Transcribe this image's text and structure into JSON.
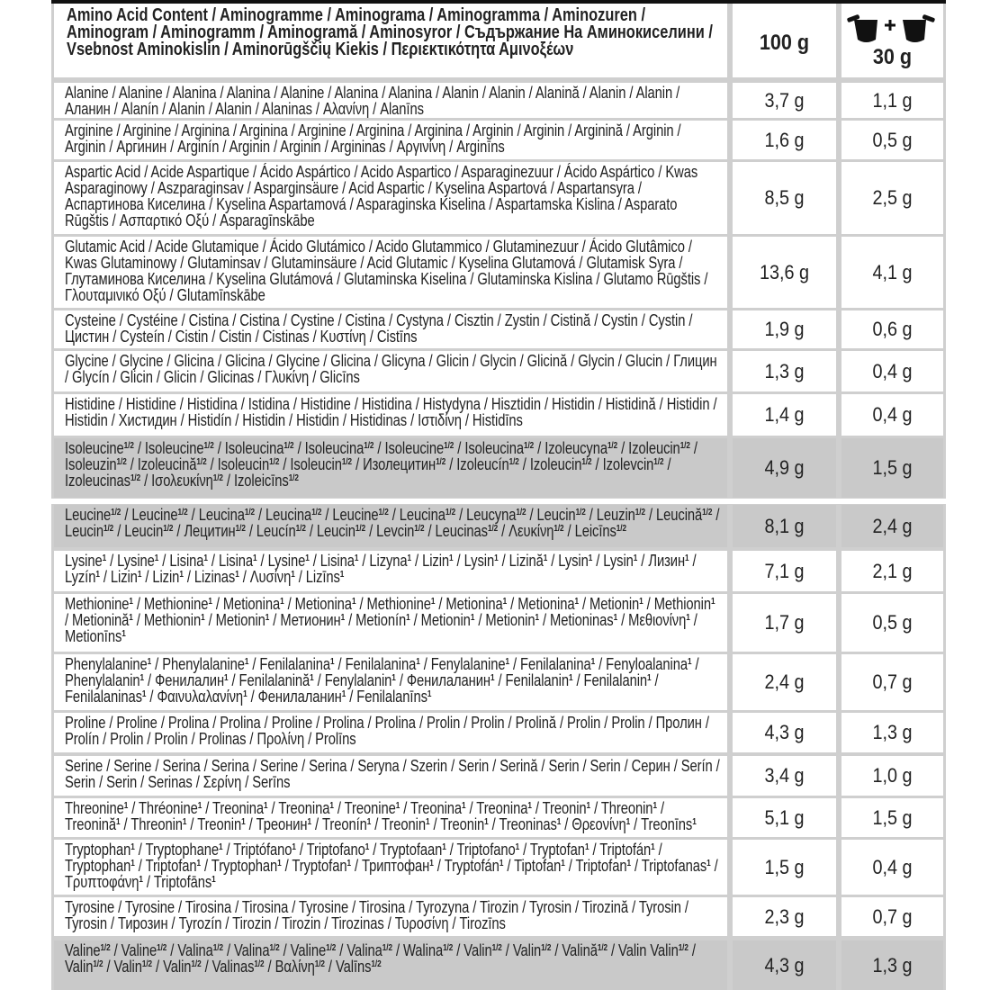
{
  "header": {
    "title": "Amino Acid Content / Aminogramme / Aminograma / Aminogramma / Aminozuren / Aminogram / Aminogramm / Aminogramă / Aminosyror / Съдържание На Аминокиселини / Vsebnost Aminokislin / Aminorūgščių Kiekis / Περιεκτικότητα Αμινοξέων",
    "col_100": "100 g",
    "col_serving": "30 g"
  },
  "table": {
    "rows": [
      {
        "name": [
          "Alanine / Alanine / Alanina / Alanina / Alanine / Alanina / Alanina / Alanin / Alanin / Alanină / Alanin / Alanin / Аланин / Alanín / Alanin / Alanin / Alaninas / Αλανίνη / Alanīns"
        ],
        "per100": "3,7 g",
        "perServing": "1,1 g"
      },
      {
        "name": [
          "Arginine / Arginine / Arginina / Arginina / Arginine / Arginina / Arginina / Arginin / Arginin / Arginină / Arginin / Arginin / Аргинин / Arginín / Arginin / Arginin / Argininas / Αργινίνη / Arginīns"
        ],
        "per100": "1,6 g",
        "perServing": "0,5 g"
      },
      {
        "name": [
          "Aspartic Acid / Acide Aspartique / Ácido Aspártico / Acido Aspartico / Asparaginezuur / Ácido Aspártico / Kwas Asparaginowy / Aszparaginsav / Asparginsäure / Acid Aspartic / Kyselina Aspartová / Aspartansyra / Аспартинова Киселина / Kyselina Aspartamová / Asparaginska Kiselina / Aspartamska Kislina / Asparato Rūgštis / Ασπαρτικό Οξύ / Asparagīnskābe"
        ],
        "per100": "8,5 g",
        "perServing": "2,5 g"
      },
      {
        "name": [
          "Glutamic Acid / Acide Glutamique / Ácido Glutámico / Acido Glutammico / Glutaminezuur / Ácido Glutâmico / Kwas Glutaminowy / Glutaminsav / Glutaminsäure / Acid Glutamic / Kyselina Glutamová / Glutamisk Syra / Глутаминова Киселина / Kyselina Glutámová / Glutaminska Kiselina / Glutaminska Kislina / Glutamo Rūgštis / Γλουταμινικό Οξύ / Glutamīnskābe"
        ],
        "per100": "13,6 g",
        "perServing": "4,1 g"
      },
      {
        "name": [
          "Cysteine / Cystéine / Cistina / Cistina / Cystine / Cistina / Cystyna / Cisztin / Zystin / Cistină / Cystin / Cystin / Цистин / Cysteín / Cistin / Cistin / Cistinas / Κυστίνη / Cistīns"
        ],
        "per100": "1,9 g",
        "perServing": "0,6 g"
      },
      {
        "name": [
          "Glycine / Glycine / Glicina / Glicina / Glycine / Glicina / Glicyna / Glicin / Glycin / Glicină / Glycin / Glucin / Глицин / Glycín / Glicin / Glicin / Glicinas / Γλυκίνη / Glicīns"
        ],
        "per100": "1,3 g",
        "perServing": "0,4 g"
      },
      {
        "name": [
          "Histidine / Histidine / Histidina / Istidina / Histidine / Histidina / Histydyna / Hisztidin / Histidin / Histidină / Histidin / Histidin / Хистидин / Histidín / Histidin / Histidin / Histidinas / Ιστιδίνη / Histidīns"
        ],
        "per100": "1,4 g",
        "perServing": "0,4 g"
      },
      {
        "name": [
          "Isoleucine",
          "1/2",
          " / Isoleucine",
          "1/2",
          " / Isoleucina",
          "1/2",
          " / Isoleucina",
          "1/2",
          " / Isoleucine",
          "1/2",
          " / Isoleucina",
          "1/2",
          " / Izoleucyna",
          "1/2",
          " / Izoleucin",
          "1/2",
          " / Isoleuzin",
          "1/2",
          " / Izoleucină",
          "1/2",
          " / Isoleucin",
          "1/2",
          " / Isoleucin",
          "1/2",
          " / Изолецитин",
          "1/2",
          " / Izoleucín",
          "1/2",
          " / Izoleucin",
          "1/2",
          " / Izolevcin",
          "1/2",
          " / Izoleucinas",
          "1/2",
          " / Ισολευκίνη",
          "1/2",
          " / Izoleicīns",
          "1/2"
        ],
        "per100": "4,9 g",
        "perServing": "1,5 g"
      },
      {
        "name": [
          "Leucine",
          "1/2",
          " / Leucine",
          "1/2",
          " / Leucina",
          "1/2",
          " / Leucina",
          "1/2",
          " / Leucine",
          "1/2",
          " / Leucina",
          "1/2",
          " / Leucyna",
          "1/2",
          " / Leucin",
          "1/2",
          " / Leuzin",
          "1/2",
          " / Leucină",
          "1/2",
          " / Leucin",
          "1/2",
          " / Leucin",
          "1/2",
          " / Лецитин",
          "1/2",
          " / Leucín",
          "1/2",
          " / Leucin",
          "1/2",
          " / Levcin",
          "1/2",
          " / Leucinas",
          "1/2",
          " / Λευκίνη",
          "1/2",
          " / Leicīns",
          "1/2"
        ],
        "per100": "8,1 g",
        "perServing": "2,4 g"
      },
      {
        "name": [
          "Lysine",
          "1",
          " / Lysine",
          "1",
          " / Lisina",
          "1",
          " / Lisina",
          "1",
          " / Lysine",
          "1",
          " / Lisina",
          "1",
          " / Lizyna",
          "1",
          " / Lizin",
          "1",
          " / Lysin",
          "1",
          " / Lizină",
          "1",
          " / Lysin",
          "1",
          " / Lysin",
          "1",
          " / Лизин",
          "1",
          " / Lyzín",
          "1",
          " / Lizin",
          "1",
          " / Lizin",
          "1",
          " / Lizinas",
          "1",
          " / Λυσίνη",
          "1",
          " / Lizīns",
          "1"
        ],
        "per100": "7,1 g",
        "perServing": "2,1 g"
      },
      {
        "name": [
          "Methionine",
          "1",
          " / Methionine",
          "1",
          " / Metionina",
          "1",
          " / Metionina",
          "1",
          " / Methionine",
          "1",
          " / Metionina",
          "1",
          " / Metionina",
          "1",
          " / Metionin",
          "1",
          " / Methionin",
          "1",
          " / Metionină",
          "1",
          " / Methionin",
          "1",
          " / Metionin",
          "1",
          " / Метионин",
          "1",
          " / Metionín",
          "1",
          " / Metionin",
          "1",
          " / Metionin",
          "1",
          " / Metioninas",
          "1",
          " / Μεθιονίνη",
          "1",
          " / Metionīns",
          "1"
        ],
        "per100": "1,7 g",
        "perServing": "0,5 g"
      },
      {
        "name": [
          "Phenylalanine",
          "1",
          " / Phenylalanine",
          "1",
          " / Fenilalanina",
          "1",
          " / Fenilalanina",
          "1",
          " / Fenylalanine",
          "1",
          " / Fenilalanina",
          "1",
          " / Fenyloalanina",
          "1",
          " / Phenylalanin",
          "1",
          " / Фенилалин",
          "1",
          " / Fenilalanină",
          "1",
          " / Fenylalanin",
          "1",
          " / Фенилаланин",
          "1",
          " / Fenilalanin",
          "1",
          " / Fenilalanin",
          "1",
          " / Fenilalaninas",
          "1",
          " / Φαινυλαλανίνη",
          "1",
          " / Фенилаланин",
          "1",
          " / Fenilalanīns",
          "1"
        ],
        "per100": "2,4 g",
        "perServing": "0,7 g"
      },
      {
        "name": [
          "Proline / Proline / Prolina / Prolina / Proline / Prolina / Prolina / Prolin / Prolin / Prolină / Prolin / Prolin / Пролин / Prolín / Prolin / Prolin / Prolinas / Προλίνη / Prolīns"
        ],
        "per100": "4,3 g",
        "perServing": "1,3 g"
      },
      {
        "name": [
          "Serine / Serine / Serina / Serina / Serine / Serina / Seryna / Szerin / Serin / Serină / Serin / Serin / Серин / Serín / Serin / Serin / Serinas / Σερίνη / Serīns"
        ],
        "per100": "3,4 g",
        "perServing": "1,0 g"
      },
      {
        "name": [
          "Threonine",
          "1",
          " / Thréonine",
          "1",
          " / Treonina",
          "1",
          " / Treonina",
          "1",
          " / Treonine",
          "1",
          " / Treonina",
          "1",
          " / Treonina",
          "1",
          " / Treonin",
          "1",
          " / Threonin",
          "1",
          " / Treonină",
          "1",
          " / Threonin",
          "1",
          " / Treonin",
          "1",
          " / Треонин",
          "1",
          " / Treonín",
          "1",
          " / Treonin",
          "1",
          " / Treonin",
          "1",
          " / Treoninas",
          "1",
          " / Θρεονίνη",
          "1",
          " / Treonīns",
          "1"
        ],
        "per100": "5,1 g",
        "perServing": "1,5 g"
      },
      {
        "name": [
          "Tryptophan",
          "1",
          " / Tryptophane",
          "1",
          " / Triptófano",
          "1",
          " / Triptofano",
          "1",
          " / Tryptofaan",
          "1",
          " / Triptofano",
          "1",
          " / Tryptofan",
          "1",
          " / Triptofán",
          "1",
          " / Tryptophan",
          "1",
          " / Triptofan",
          "1",
          " / Tryptophan",
          "1",
          " / Tryptofan",
          "1",
          " / Триптофан",
          "1",
          " / Tryptofán",
          "1",
          " / Tiptofan",
          "1",
          " / Triptofan",
          "1",
          " / Triptofanas",
          "1",
          " / Τρυπτοφάνη",
          "1",
          " / Triptofāns",
          "1"
        ],
        "per100": "1,5 g",
        "perServing": "0,4 g"
      },
      {
        "name": [
          "Tyrosine / Tyrosine / Tirosina / Tirosina / Tyrosine / Tirosina / Tyrozyna / Tirozin / Tyrosin / Tirozină / Tyrosin / Tyrosin / Тирозин / Tyrozín / Tirozin / Tirozin / Tirozinas / Τυροσίνη / Tirozīns"
        ],
        "per100": "2,3 g",
        "perServing": "0,7 g"
      },
      {
        "name": [
          "Valine",
          "1/2",
          " / Valine",
          "1/2",
          " / Valina",
          "1/2",
          " / Valina",
          "1/2",
          " / Valine",
          "1/2",
          " / Valina",
          "1/2",
          " / Walina",
          "1/2",
          " / Valin",
          "1/2",
          " / Valin",
          "1/2",
          " / Valină",
          "1/2",
          " / Valin Valin",
          "1/2",
          " / Valin",
          "1/2",
          " / Valin",
          "1/2",
          " / Valin",
          "1/2",
          " / Valinas",
          "1/2",
          " / Βαλίνη",
          "1/2",
          " / Valīns",
          "1/2"
        ],
        "per100": "4,3 g",
        "perServing": "1,3 g"
      }
    ]
  }
}
